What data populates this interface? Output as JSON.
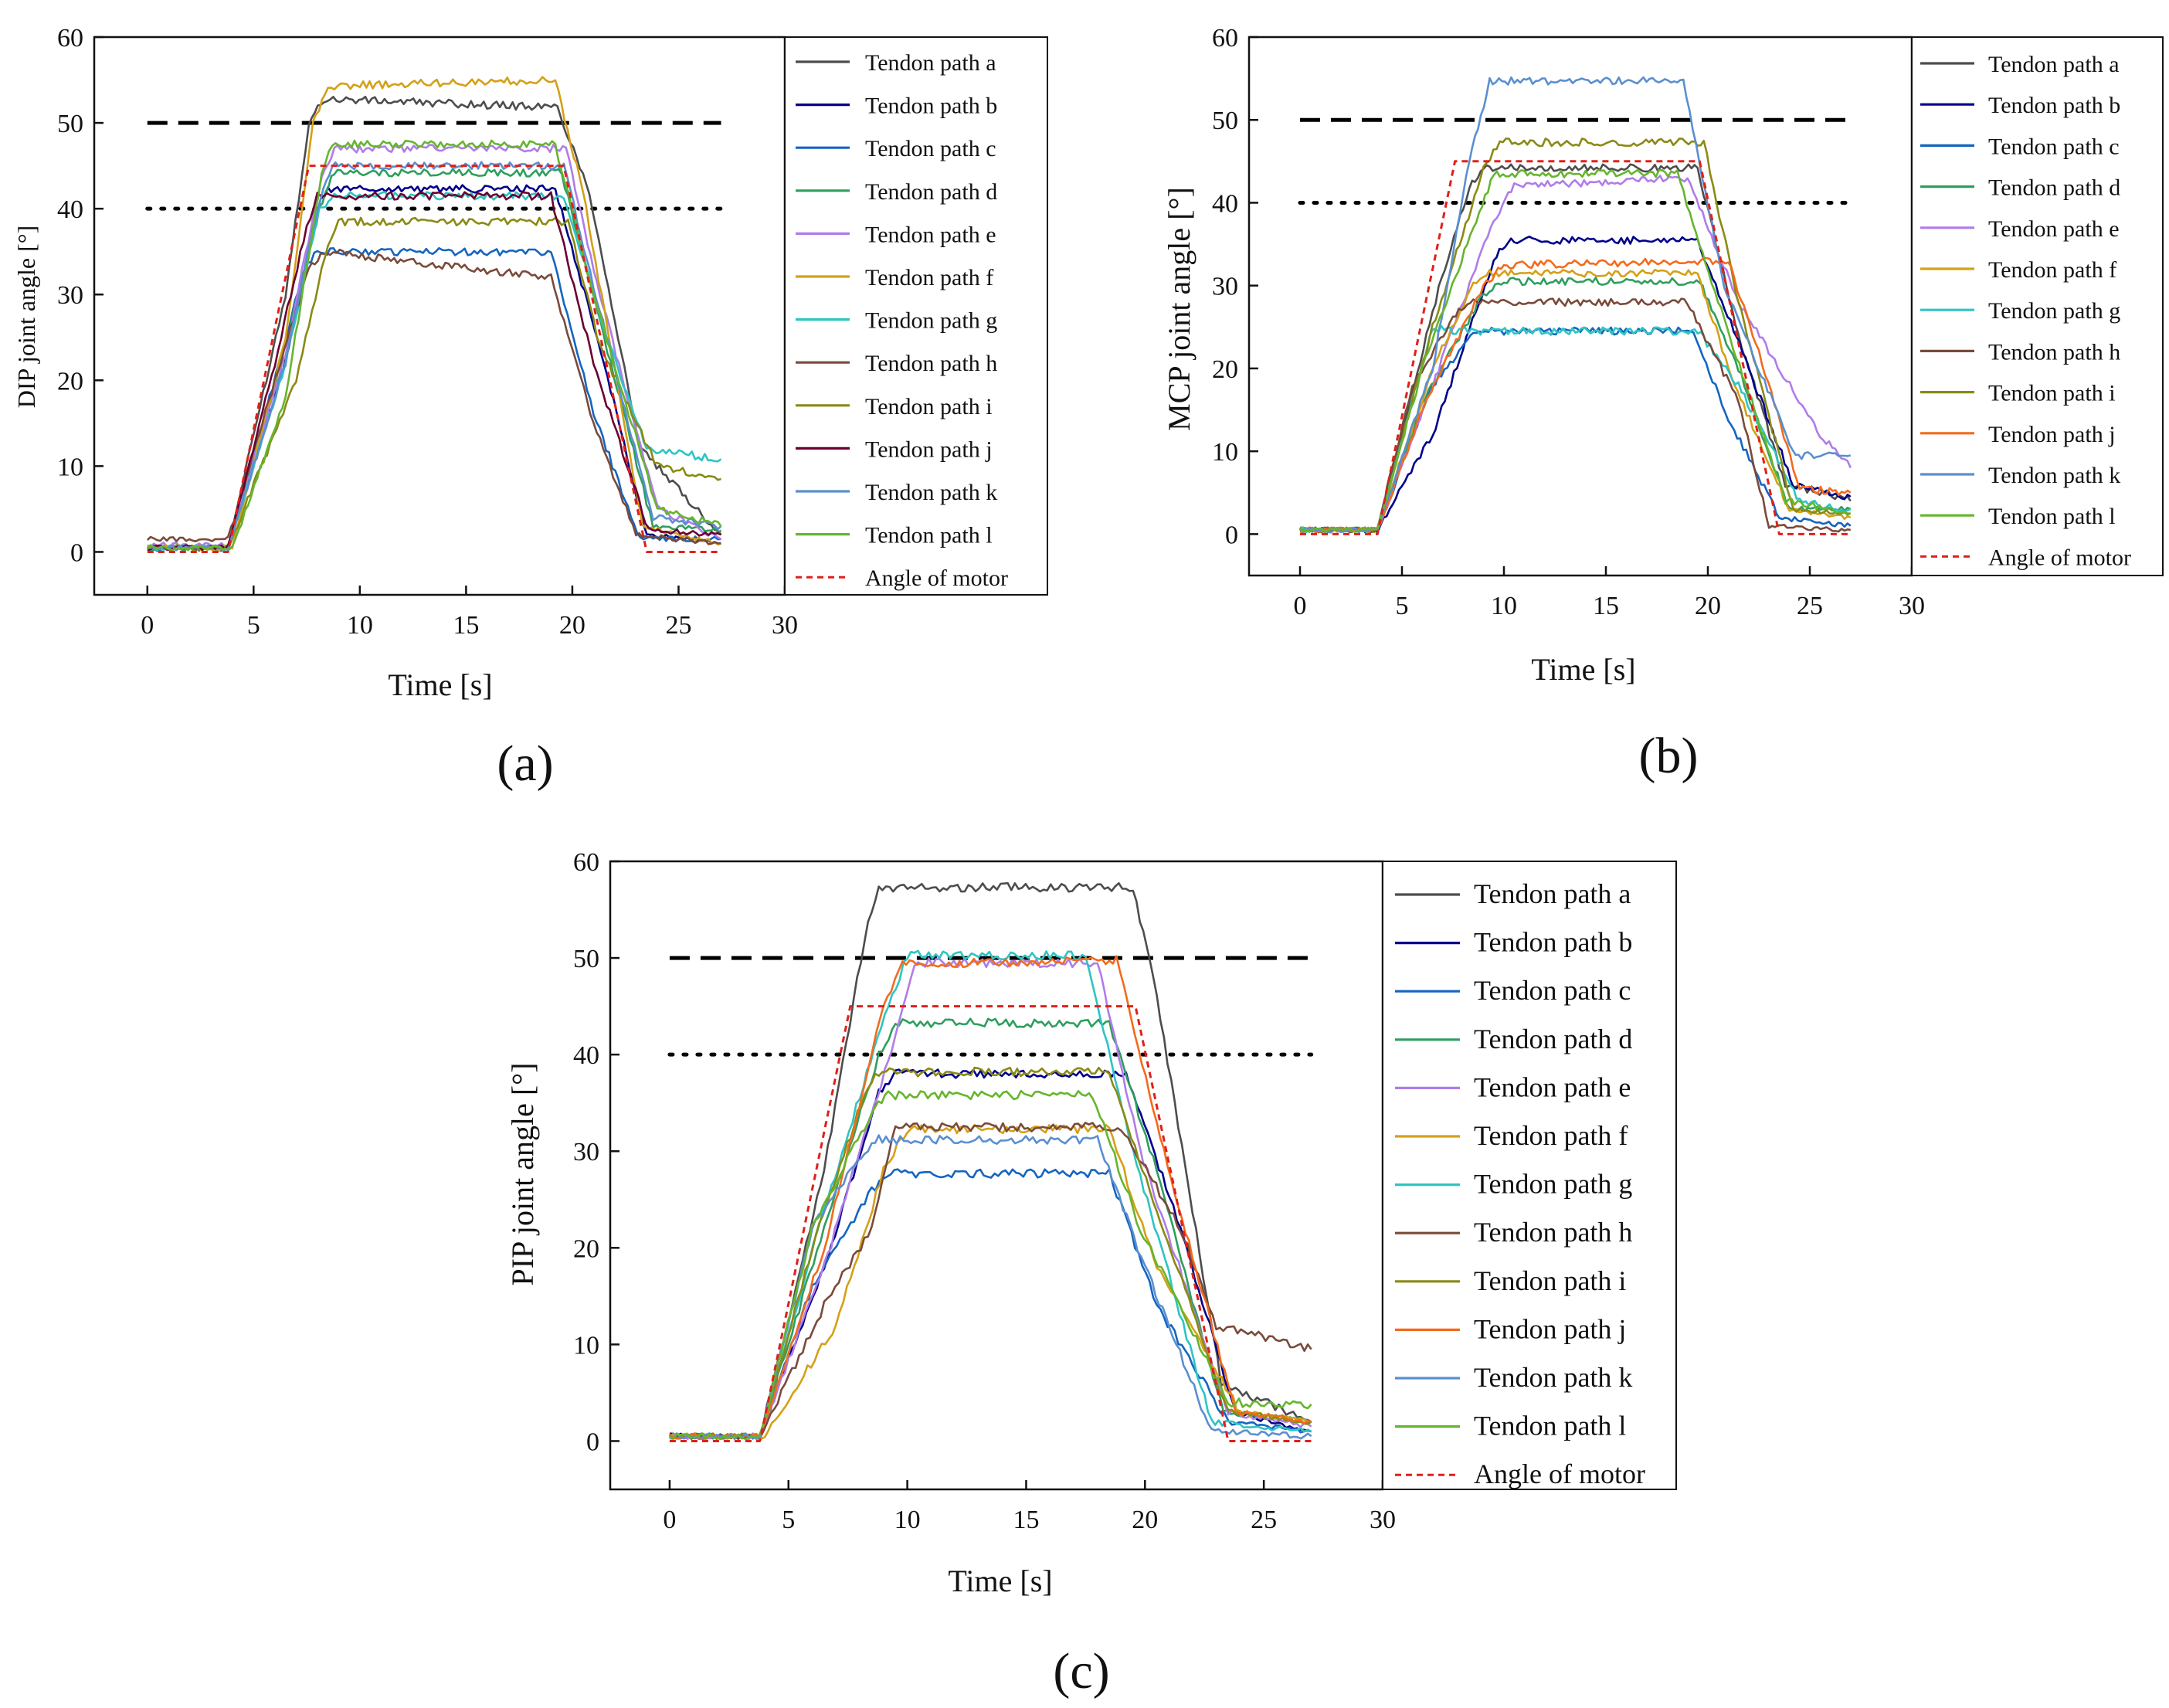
{
  "chart_data": [
    {
      "panel": "(a)",
      "type": "line",
      "xlabel": "Time [s]",
      "ylabel": "DIP joint angle [°]",
      "xlim": [
        -2.5,
        30
      ],
      "ylim": [
        -5,
        60
      ],
      "xticks": [
        0,
        5,
        10,
        15,
        20,
        25,
        30
      ],
      "yticks": [
        0,
        10,
        20,
        30,
        40,
        50,
        60
      ],
      "grid": false,
      "legend_position": "right, outside plot box",
      "reference_lines": [
        {
          "style": "dashed",
          "y": 50,
          "x_range": [
            0,
            27
          ]
        },
        {
          "style": "dotted",
          "y": 40,
          "x_range": [
            0,
            27
          ]
        }
      ],
      "series": [
        {
          "name": "Tendon path a",
          "color": "#4d4d4d",
          "x": [
            0,
            3.8,
            6.5,
            7.6,
            8.3,
            19.3,
            20.8,
            23.2,
            27
          ],
          "y": [
            0.5,
            0.5,
            30,
            50,
            52.8,
            51.8,
            42,
            12,
            2
          ]
        },
        {
          "name": "Tendon path b",
          "color": "#00008b",
          "x": [
            0,
            3.8,
            6.5,
            8.0,
            8.5,
            19.2,
            21.5,
            23.5,
            27
          ],
          "y": [
            0.5,
            0.5,
            22,
            40,
            42.3,
            42.3,
            22,
            2,
            1
          ]
        },
        {
          "name": "Tendon path c",
          "color": "#1565c0",
          "x": [
            0,
            3.8,
            6.2,
            7.4,
            8.0,
            19.0,
            21.0,
            23.2,
            27
          ],
          "y": [
            0.3,
            0.3,
            22,
            33,
            35,
            35,
            16,
            1.5,
            1.5
          ]
        },
        {
          "name": "Tendon path d",
          "color": "#2e9e5e",
          "x": [
            0,
            3.8,
            6.5,
            8.1,
            8.8,
            19.5,
            21.5,
            23.8,
            27
          ],
          "y": [
            0.5,
            0.5,
            24,
            40,
            44.2,
            44.2,
            25,
            3,
            2.5
          ]
        },
        {
          "name": "Tendon path e",
          "color": "#b07ce8",
          "x": [
            0,
            3.8,
            6.5,
            8.2,
            8.8,
            19.7,
            21.3,
            24.0,
            27
          ],
          "y": [
            0.8,
            0.8,
            23,
            44,
            47,
            47,
            30,
            5,
            1.5
          ]
        },
        {
          "name": "Tendon path f",
          "color": "#d4a017",
          "x": [
            0,
            4.0,
            6.5,
            7.8,
            8.5,
            19.2,
            20.5,
            23.3,
            27
          ],
          "y": [
            0.5,
            0.5,
            25,
            50,
            54.3,
            55,
            42,
            3,
            1
          ]
        },
        {
          "name": "Tendon path g",
          "color": "#2ec4c4",
          "x": [
            0,
            3.8,
            6.5,
            8.1,
            8.8,
            19.6,
            21.5,
            23.5,
            27
          ],
          "y": [
            0.5,
            0.5,
            22,
            40,
            41.5,
            41.5,
            26,
            12,
            10.8
          ]
        },
        {
          "name": "Tendon path h",
          "color": "#7a4a3a",
          "x": [
            0,
            3.8,
            6.0,
            7.6,
            8.3,
            19.0,
            21.0,
            23.0,
            27
          ],
          "y": [
            1.5,
            1.5,
            20,
            33,
            35,
            32,
            15,
            2,
            1
          ]
        },
        {
          "name": "Tendon path i",
          "color": "#8a8a14",
          "x": [
            0,
            3.8,
            7.0,
            8.5,
            9.0,
            19.8,
            21.3,
            24.0,
            27
          ],
          "y": [
            0.5,
            0.5,
            20,
            36,
            38.5,
            38.5,
            24,
            10,
            8.5
          ]
        },
        {
          "name": "Tendon path j",
          "color": "#6b0030",
          "x": [
            0,
            3.8,
            6.0,
            7.5,
            8.0,
            19.0,
            21.0,
            23.6,
            27
          ],
          "y": [
            0.5,
            0.5,
            22,
            38,
            41.5,
            41.5,
            22,
            2.5,
            2
          ]
        },
        {
          "name": "Tendon path k",
          "color": "#5a8fd0",
          "x": [
            0,
            3.8,
            6.5,
            8.0,
            8.7,
            19.6,
            21.3,
            23.8,
            27
          ],
          "y": [
            0.5,
            0.5,
            22,
            40,
            45,
            45,
            28,
            4,
            3
          ]
        },
        {
          "name": "Tendon path l",
          "color": "#66b52e",
          "x": [
            0,
            4.0,
            6.5,
            8.2,
            8.7,
            19.2,
            21.0,
            24.0,
            27
          ],
          "y": [
            0.5,
            0.5,
            18,
            44,
            47.5,
            47.5,
            30,
            5,
            3
          ]
        },
        {
          "name": "Angle of motor",
          "color": "#e0201a",
          "dashed": true,
          "x": [
            0,
            3.8,
            7.6,
            19.6,
            23.5,
            27
          ],
          "y": [
            0,
            0,
            45,
            45,
            0,
            0
          ]
        }
      ]
    },
    {
      "panel": "(b)",
      "type": "line",
      "xlabel": "Time [s]",
      "ylabel": "MCP joint angle [°]",
      "xlim": [
        -2.5,
        30
      ],
      "ylim": [
        -5,
        60
      ],
      "xticks": [
        0,
        5,
        10,
        15,
        20,
        25,
        30
      ],
      "yticks": [
        0,
        10,
        20,
        30,
        40,
        50,
        60
      ],
      "grid": false,
      "legend_position": "right, outside plot box",
      "reference_lines": [
        {
          "style": "dashed",
          "y": 50,
          "x_range": [
            0,
            27
          ]
        },
        {
          "style": "dotted",
          "y": 40,
          "x_range": [
            0,
            27
          ]
        }
      ],
      "series": [
        {
          "name": "Tendon path a",
          "color": "#4d4d4d",
          "x": [
            0,
            3.8,
            6.5,
            8.3,
            9.0,
            19.5,
            21.5,
            23.8,
            27
          ],
          "y": [
            0.5,
            0.5,
            27,
            42,
            44.2,
            44.2,
            24,
            6,
            4
          ]
        },
        {
          "name": "Tendon path b",
          "color": "#00008b",
          "x": [
            0,
            3.8,
            6.5,
            9.5,
            10.2,
            19.5,
            22.0,
            24.2,
            27
          ],
          "y": [
            0.5,
            0.5,
            12,
            33,
            35.5,
            35.5,
            20,
            6,
            4.5
          ]
        },
        {
          "name": "Tendon path c",
          "color": "#1565c0",
          "x": [
            0,
            3.8,
            6.5,
            7.8,
            8.5,
            19.3,
            21.0,
            23.5,
            27
          ],
          "y": [
            0.5,
            0.5,
            18,
            22,
            24.5,
            24.5,
            14,
            2,
            1
          ]
        },
        {
          "name": "Tendon path d",
          "color": "#2e9e5e",
          "x": [
            0,
            3.8,
            6.0,
            9.0,
            10.0,
            19.6,
            21.5,
            24.0,
            27
          ],
          "y": [
            0.5,
            0.5,
            16,
            29,
            30.5,
            30.5,
            20,
            3,
            3
          ]
        },
        {
          "name": "Tendon path e",
          "color": "#b07ce8",
          "x": [
            0,
            3.8,
            6.5,
            9.5,
            10.5,
            19.0,
            21.5,
            25.5,
            27
          ],
          "y": [
            0.5,
            0.5,
            18,
            38,
            42,
            43,
            28,
            12,
            8
          ]
        },
        {
          "name": "Tendon path f",
          "color": "#d4a017",
          "x": [
            0,
            3.8,
            6.5,
            8.5,
            9.3,
            19.5,
            21.3,
            24.0,
            27
          ],
          "y": [
            0.5,
            0.5,
            20,
            30,
            31.5,
            31.5,
            18,
            3,
            2
          ]
        },
        {
          "name": "Tendon path g",
          "color": "#2ec4c4",
          "x": [
            0,
            3.8,
            5.5,
            6.5,
            7.5,
            19.5,
            21.5,
            24.5,
            27
          ],
          "y": [
            0.5,
            0.5,
            16,
            25,
            24.5,
            24.5,
            18,
            4,
            3
          ]
        },
        {
          "name": "Tendon path h",
          "color": "#7a4a3a",
          "x": [
            0,
            3.8,
            5.5,
            7.5,
            8.2,
            19.0,
            21.5,
            23.0,
            27
          ],
          "y": [
            0.5,
            0.5,
            18,
            26,
            28,
            28,
            16,
            1,
            0.5
          ]
        },
        {
          "name": "Tendon path i",
          "color": "#8a8a14",
          "x": [
            0,
            3.8,
            6.5,
            9.0,
            9.8,
            19.8,
            21.5,
            24.2,
            27
          ],
          "y": [
            0.5,
            0.5,
            25,
            44,
            47.3,
            47.3,
            28,
            3,
            2.5
          ]
        },
        {
          "name": "Tendon path j",
          "color": "#f26b1d",
          "x": [
            0,
            3.8,
            6.0,
            9.0,
            10.0,
            21.0,
            22.5,
            24.5,
            27
          ],
          "y": [
            0.5,
            0.5,
            15,
            30,
            32.5,
            33,
            22,
            5.5,
            5
          ]
        },
        {
          "name": "Tendon path k",
          "color": "#5a8fd0",
          "x": [
            0,
            3.8,
            6.5,
            8.3,
            9.3,
            18.8,
            20.8,
            24.3,
            27
          ],
          "y": [
            0.5,
            0.5,
            20,
            45,
            54.7,
            54.7,
            30,
            9.5,
            9.5
          ]
        },
        {
          "name": "Tendon path l",
          "color": "#66b52e",
          "x": [
            0,
            3.8,
            6.0,
            8.5,
            9.5,
            18.5,
            20.5,
            23.8,
            27
          ],
          "y": [
            0.5,
            0.5,
            20,
            37,
            43.5,
            43.5,
            28,
            4,
            2.5
          ]
        },
        {
          "name": "Angle of motor",
          "color": "#e0201a",
          "dashed": true,
          "x": [
            0,
            3.8,
            7.6,
            19.6,
            23.5,
            27
          ],
          "y": [
            0,
            0,
            45,
            45,
            0,
            0
          ]
        }
      ]
    },
    {
      "panel": "(c)",
      "type": "line",
      "xlabel": "Time [s]",
      "ylabel": "PIP joint angle [°]",
      "xlim": [
        -2.5,
        30
      ],
      "ylim": [
        -5,
        60
      ],
      "xticks": [
        0,
        5,
        10,
        15,
        20,
        25,
        30
      ],
      "yticks": [
        0,
        10,
        20,
        30,
        40,
        50,
        60
      ],
      "grid": false,
      "legend_position": "right, outside plot box",
      "reference_lines": [
        {
          "style": "dashed",
          "y": 50,
          "x_range": [
            0,
            27
          ]
        },
        {
          "style": "dotted",
          "y": 40,
          "x_range": [
            0,
            27
          ]
        }
      ],
      "series": [
        {
          "name": "Tendon path a",
          "color": "#4d4d4d",
          "x": [
            0,
            3.8,
            6.5,
            8.2,
            8.8,
            19.5,
            20.5,
            23.2,
            27
          ],
          "y": [
            0.5,
            0.5,
            28,
            52,
            57.3,
            57.3,
            46,
            6,
            2
          ]
        },
        {
          "name": "Tendon path b",
          "color": "#00008b",
          "x": [
            0,
            3.8,
            6.5,
            8.8,
            9.5,
            19.2,
            21.5,
            23.8,
            27
          ],
          "y": [
            0.5,
            0.5,
            18,
            36,
            38,
            38,
            22,
            3,
            1
          ]
        },
        {
          "name": "Tendon path c",
          "color": "#1565c0",
          "x": [
            0,
            3.8,
            6.0,
            8.5,
            9.3,
            18.5,
            20.5,
            23.5,
            27
          ],
          "y": [
            0.5,
            0.5,
            16,
            26,
            27.7,
            27.7,
            14,
            2,
            1
          ]
        },
        {
          "name": "Tendon path d",
          "color": "#2e9e5e",
          "x": [
            0,
            3.8,
            6.5,
            8.8,
            9.5,
            18.5,
            20.5,
            23.3,
            27
          ],
          "y": [
            0.5,
            0.5,
            22,
            40,
            43.3,
            43.3,
            28,
            3,
            2
          ]
        },
        {
          "name": "Tendon path e",
          "color": "#b07ce8",
          "x": [
            0,
            3.8,
            6.5,
            9.5,
            10.3,
            18.0,
            19.8,
            23.5,
            27
          ],
          "y": [
            0.5,
            0.5,
            18,
            42,
            49.5,
            49.5,
            30,
            3,
            1.5
          ]
        },
        {
          "name": "Tendon path f",
          "color": "#d4a017",
          "x": [
            0,
            4.0,
            7.0,
            9.0,
            10.0,
            18.5,
            20.5,
            24.0,
            27
          ],
          "y": [
            0.5,
            0.5,
            12,
            28,
            32.3,
            32.3,
            18,
            3,
            2
          ]
        },
        {
          "name": "Tendon path g",
          "color": "#2ec4c4",
          "x": [
            0,
            3.8,
            6.5,
            9.2,
            10.0,
            17.5,
            19.5,
            22.8,
            27
          ],
          "y": [
            0.5,
            0.5,
            24,
            45,
            50.3,
            50.3,
            30,
            2,
            1
          ]
        },
        {
          "name": "Tendon path h",
          "color": "#7a4a3a",
          "x": [
            0,
            3.8,
            6.5,
            8.5,
            9.5,
            19.0,
            21.5,
            23.0,
            27
          ],
          "y": [
            0.5,
            0.5,
            14,
            22,
            32.5,
            32.5,
            22,
            12,
            9.5
          ]
        },
        {
          "name": "Tendon path i",
          "color": "#8a8a14",
          "x": [
            0,
            3.8,
            6.0,
            8.2,
            8.8,
            18.5,
            20.5,
            23.5,
            27
          ],
          "y": [
            0.5,
            0.5,
            20,
            36,
            38.2,
            38.2,
            24,
            3,
            2
          ]
        },
        {
          "name": "Tendon path j",
          "color": "#f26b1d",
          "x": [
            0,
            3.8,
            6.5,
            9.0,
            9.8,
            18.8,
            20.8,
            23.8,
            27
          ],
          "y": [
            0.5,
            0.5,
            20,
            45,
            49.3,
            49.8,
            30,
            3,
            2
          ]
        },
        {
          "name": "Tendon path k",
          "color": "#5a8fd0",
          "x": [
            0,
            3.8,
            6.0,
            8.2,
            8.8,
            18.0,
            20.0,
            22.8,
            27
          ],
          "y": [
            0.5,
            0.5,
            22,
            30,
            31.2,
            31.2,
            18,
            1,
            0.5
          ]
        },
        {
          "name": "Tendon path l",
          "color": "#66b52e",
          "x": [
            0,
            3.8,
            6.0,
            8.5,
            9.2,
            17.8,
            19.8,
            23.5,
            27
          ],
          "y": [
            0.5,
            0.5,
            22,
            34,
            35.8,
            35.8,
            22,
            4,
            3.8
          ]
        },
        {
          "name": "Angle of motor",
          "color": "#e0201a",
          "dashed": true,
          "x": [
            0,
            3.8,
            7.6,
            19.6,
            23.5,
            27
          ],
          "y": [
            0,
            0,
            45,
            45,
            0,
            0
          ]
        }
      ]
    }
  ]
}
